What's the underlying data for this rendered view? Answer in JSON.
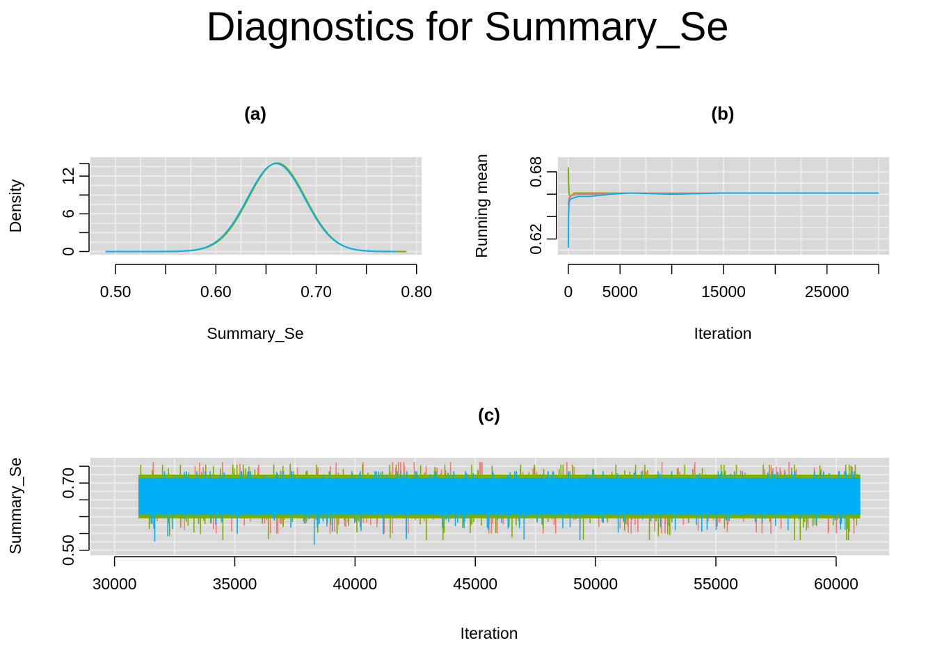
{
  "title": "Diagnostics for Summary_Se",
  "colors": {
    "panel_bg": "#D9D9D9",
    "grid": "#EBEBEB",
    "chain_1": "#F8766D",
    "chain_2": "#7CAE00",
    "chain_3": "#00BFC4",
    "chain_4": "#00B0F6"
  },
  "chart_data": [
    {
      "panel": "(a)",
      "type": "line",
      "title": "(a)",
      "xlabel": "Summary_Se",
      "ylabel": "Density",
      "xlim": [
        0.475,
        0.805
      ],
      "ylim": [
        -0.5,
        15
      ],
      "xticks": [
        "0.50",
        "0.60",
        "0.70",
        "0.80"
      ],
      "yticks": [
        "0",
        "6",
        "12"
      ],
      "grid": true,
      "series": [
        {
          "color": "#7CAE00",
          "mean": 0.661,
          "sd": 0.0283,
          "peak": 14.1,
          "x_range": [
            0.49,
            0.79
          ]
        },
        {
          "color": "#00B0F6",
          "mean": 0.66,
          "sd": 0.0285,
          "peak": 14.0,
          "x_range": [
            0.49,
            0.78
          ]
        }
      ]
    },
    {
      "panel": "(b)",
      "type": "line",
      "title": "(b)",
      "xlabel": "Iteration",
      "ylabel": "Running mean",
      "xlim": [
        -1000,
        31000
      ],
      "ylim": [
        0.606,
        0.693
      ],
      "xticks": [
        "0",
        "5000",
        "15000",
        "25000"
      ],
      "yticks": [
        "0.62",
        "0.68"
      ],
      "grid": true,
      "series": [
        {
          "color": "#7CAE00",
          "x": [
            0,
            20,
            60,
            150,
            300,
            600,
            1000,
            2000,
            3000,
            4000,
            6000,
            10000,
            15000,
            20000,
            25000,
            30000
          ],
          "y": [
            0.684,
            0.672,
            0.662,
            0.657,
            0.659,
            0.661,
            0.661,
            0.661,
            0.661,
            0.661,
            0.661,
            0.661,
            0.661,
            0.661,
            0.661,
            0.661
          ]
        },
        {
          "color": "#F8766D",
          "x": [
            0,
            50,
            150,
            400,
            1000,
            2500,
            5000,
            10000,
            20000,
            30000
          ],
          "y": [
            0.65,
            0.656,
            0.658,
            0.659,
            0.66,
            0.66,
            0.661,
            0.661,
            0.661,
            0.661
          ]
        },
        {
          "color": "#00B0F6",
          "x": [
            0,
            20,
            60,
            150,
            300,
            600,
            1000,
            2000,
            3000,
            4000,
            6000,
            10000,
            15000,
            20000,
            25000,
            30000
          ],
          "y": [
            0.612,
            0.64,
            0.652,
            0.655,
            0.656,
            0.657,
            0.658,
            0.658,
            0.659,
            0.66,
            0.661,
            0.66,
            0.661,
            0.661,
            0.661,
            0.661
          ]
        }
      ]
    },
    {
      "panel": "(c)",
      "type": "line",
      "title": "(c)",
      "xlabel": "Iteration",
      "ylabel": "Summary_Se",
      "xlim": [
        29000,
        62200
      ],
      "ylim": [
        0.485,
        0.775
      ],
      "xticks": [
        "30000",
        "35000",
        "40000",
        "45000",
        "50000",
        "55000",
        "60000"
      ],
      "yticks": [
        "0.50",
        "0.70"
      ],
      "grid": true,
      "iterations": [
        31000,
        61000
      ],
      "series": [
        {
          "color": "#F8766D",
          "center": 0.661,
          "band": [
            0.595,
            0.725
          ],
          "min": 0.55,
          "max": 0.762
        },
        {
          "color": "#7CAE00",
          "center": 0.661,
          "band": [
            0.595,
            0.725
          ],
          "min": 0.53,
          "max": 0.755
        },
        {
          "color": "#00B0F6",
          "center": 0.66,
          "band": [
            0.605,
            0.715
          ],
          "min": 0.51,
          "max": 0.735
        }
      ]
    }
  ]
}
